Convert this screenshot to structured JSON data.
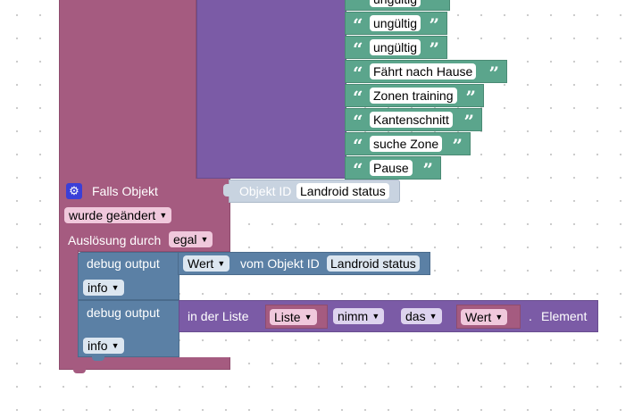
{
  "text_blocks": [
    {
      "value": "ungültig"
    },
    {
      "value": "ungültig"
    },
    {
      "value": "ungültig"
    },
    {
      "value": "Fährt nach Hause"
    },
    {
      "value": "Zonen training"
    },
    {
      "value": "Kantenschnitt"
    },
    {
      "value": "suche Zone"
    },
    {
      "value": "Pause"
    }
  ],
  "quote_open": "“",
  "quote_close": "”",
  "trigger": {
    "label": "Falls Objekt",
    "icon": "gear-icon",
    "objekt_id_label": "Objekt ID",
    "objekt_id_value": "Landroid status",
    "mode_value": "wurde geändert",
    "ausloesung_label": "Auslösung durch",
    "ausloesung_value": "egal"
  },
  "debug1": {
    "label": "debug output",
    "level": "info",
    "attr_value": "Wert",
    "vom_label": "vom Objekt ID",
    "object_value": "Landroid status"
  },
  "debug2": {
    "label": "debug output",
    "level": "info",
    "in_der_liste_label": "in der Liste",
    "list_var": "Liste",
    "mode": "nimm",
    "position": "das",
    "index_var": "Wert",
    "dot": ".",
    "element_label": "Element"
  },
  "colors": {
    "event": "#a55b80",
    "list": "#7b5ba6",
    "text": "#5ba58c",
    "system": "#5b80a5"
  }
}
